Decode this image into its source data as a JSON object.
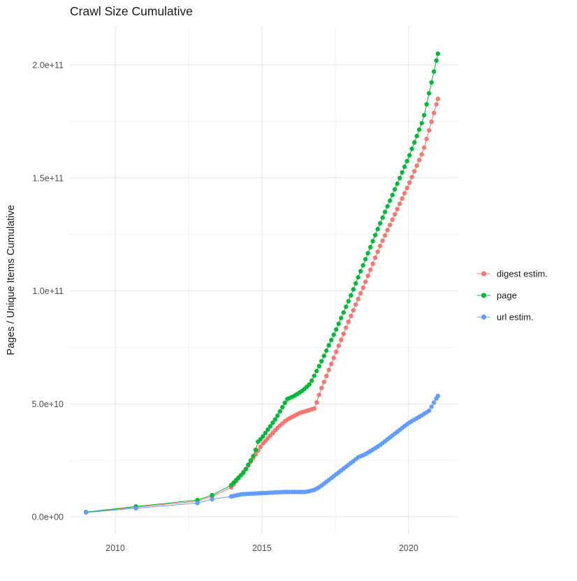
{
  "chart_data": {
    "type": "line",
    "title": "Crawl Size Cumulative",
    "xlabel": "",
    "ylabel": "Pages / Unique Items Cumulative",
    "xlim": [
      2008.45,
      2021.67
    ],
    "ylim": [
      -7700000000.0,
      217000000000.0
    ],
    "grid": true,
    "legend_position": "right",
    "x_tick_values": [
      2010,
      2015,
      2020
    ],
    "x_tick_labels": [
      "2010",
      "2015",
      "2020"
    ],
    "y_tick_values": [
      0,
      50000000000.0,
      100000000000.0,
      150000000000.0,
      200000000000.0
    ],
    "y_tick_labels": [
      "0.0e+00",
      "5.0e+10",
      "1.0e+11",
      "1.5e+11",
      "2.0e+11"
    ],
    "x_minor_gridlines": [
      2012.5,
      2017.5
    ],
    "y_minor_gridlines": [
      25000000000.0,
      75000000000.0,
      125000000000.0,
      175000000000.0
    ],
    "point_interval_years": 0.0833,
    "series": [
      {
        "name": "digest estim.",
        "color": "#F8766D",
        "early_points": [
          [
            2009.0,
            2000000000.0
          ],
          [
            2010.7,
            4300000000.0
          ],
          [
            2012.8,
            6900000000.0
          ],
          [
            2013.3,
            9000000000.0
          ]
        ],
        "anchors": [
          [
            2013.95,
            13000000000.0
          ],
          [
            2014.5,
            22000000000.0
          ],
          [
            2015.0,
            32000000000.0
          ],
          [
            2015.5,
            39000000000.0
          ],
          [
            2015.8,
            42500000000.0
          ],
          [
            2016.0,
            44000000000.0
          ],
          [
            2016.3,
            46000000000.0
          ],
          [
            2016.8,
            48000000000.0
          ],
          [
            2017.0,
            56000000000.0
          ],
          [
            2017.5,
            72000000000.0
          ],
          [
            2018.0,
            88000000000.0
          ],
          [
            2018.5,
            103000000000.0
          ],
          [
            2019.0,
            119000000000.0
          ],
          [
            2019.5,
            133000000000.0
          ],
          [
            2020.0,
            147000000000.0
          ],
          [
            2020.5,
            162000000000.0
          ],
          [
            2021.0,
            185000000000.0
          ]
        ]
      },
      {
        "name": "page",
        "color": "#00BA38",
        "early_points": [
          [
            2009.0,
            2100000000.0
          ],
          [
            2010.7,
            4600000000.0
          ],
          [
            2012.8,
            7400000000.0
          ],
          [
            2013.3,
            9600000000.0
          ]
        ],
        "anchors": [
          [
            2013.95,
            14000000000.0
          ],
          [
            2014.4,
            20000000000.0
          ],
          [
            2014.75,
            28000000000.0
          ],
          [
            2014.85,
            33000000000.0
          ],
          [
            2015.0,
            35000000000.0
          ],
          [
            2015.5,
            44000000000.0
          ],
          [
            2015.85,
            52000000000.0
          ],
          [
            2016.1,
            53500000000.0
          ],
          [
            2016.4,
            56000000000.0
          ],
          [
            2016.65,
            59000000000.0
          ],
          [
            2017.0,
            68000000000.0
          ],
          [
            2017.5,
            82000000000.0
          ],
          [
            2018.0,
            97000000000.0
          ],
          [
            2018.5,
            113000000000.0
          ],
          [
            2019.0,
            129000000000.0
          ],
          [
            2019.5,
            144000000000.0
          ],
          [
            2020.0,
            159000000000.0
          ],
          [
            2020.5,
            176000000000.0
          ],
          [
            2021.0,
            205000000000.0
          ]
        ]
      },
      {
        "name": "url estim.",
        "color": "#619CFF",
        "early_points": [
          [
            2009.0,
            1900000000.0
          ],
          [
            2010.7,
            3800000000.0
          ],
          [
            2012.8,
            6100000000.0
          ],
          [
            2013.3,
            7800000000.0
          ]
        ],
        "anchors": [
          [
            2013.95,
            9000000000.0
          ],
          [
            2014.3,
            10000000000.0
          ],
          [
            2015.0,
            10500000000.0
          ],
          [
            2015.8,
            11000000000.0
          ],
          [
            2016.5,
            11000000000.0
          ],
          [
            2016.8,
            12000000000.0
          ],
          [
            2017.0,
            13500000000.0
          ],
          [
            2017.5,
            18500000000.0
          ],
          [
            2018.0,
            23500000000.0
          ],
          [
            2018.3,
            26500000000.0
          ],
          [
            2018.5,
            27500000000.0
          ],
          [
            2019.0,
            31500000000.0
          ],
          [
            2019.5,
            36500000000.0
          ],
          [
            2020.0,
            41500000000.0
          ],
          [
            2020.4,
            44500000000.0
          ],
          [
            2020.7,
            47000000000.0
          ],
          [
            2021.0,
            53500000000.0
          ]
        ]
      }
    ],
    "colors": {
      "grid_major": "#e4e4e4",
      "grid_minor": "#f2f2f2",
      "tick_label": "#4d4d4d",
      "text": "#1a1a1a"
    }
  }
}
